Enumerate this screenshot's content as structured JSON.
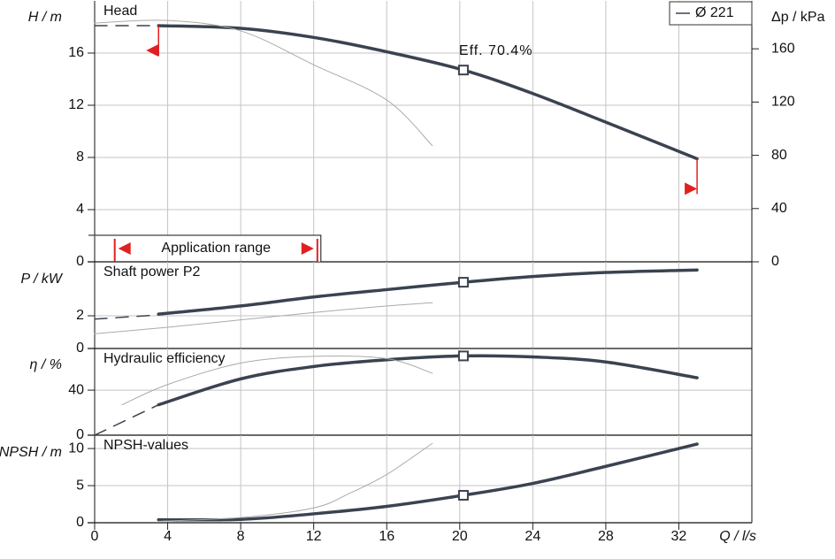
{
  "chart_data": [
    {
      "type": "line",
      "title": "Head",
      "ylabel": "H / m",
      "y2label": "Δp / kPa",
      "xlim": [
        0,
        36
      ],
      "xticks": [
        0,
        4,
        8,
        12,
        16,
        20,
        24,
        28,
        32
      ],
      "ylim": [
        0,
        20
      ],
      "yticks": [
        0,
        4,
        8,
        12,
        16
      ],
      "y2lim": [
        0,
        196
      ],
      "y2ticks": [
        0,
        40,
        80,
        120,
        160
      ],
      "grid": true,
      "legend": "upper right",
      "series": [
        {
          "name": "Ø 221",
          "color": "#3a4350",
          "line_width": 3.5,
          "x": [
            3.5,
            8,
            12,
            16,
            20.2,
            24,
            28,
            33
          ],
          "values": [
            18.1,
            17.9,
            17.2,
            16.1,
            14.7,
            12.9,
            10.7,
            7.9
          ]
        },
        {
          "color": "#3a4350",
          "line_width": 1.5,
          "dashed": true,
          "x": [
            0,
            3.5
          ],
          "values": [
            18.1,
            18.1
          ]
        },
        {
          "color": "#aaaaaa",
          "line_width": 1,
          "x": [
            0,
            4,
            8,
            12,
            16,
            18.5
          ],
          "values": [
            18.3,
            18.5,
            17.7,
            15.1,
            12.4,
            8.9
          ]
        }
      ],
      "duty_point": {
        "x": 20.2,
        "y": 14.7
      },
      "annotation": {
        "text": "Eff. 70.4%",
        "x": 20.2,
        "y": 15.6
      },
      "application_range": {
        "label": "Application range",
        "x": [
          1.1,
          12.2
        ]
      },
      "limits": [
        {
          "x": 3.5,
          "from": 18.1,
          "to": 16.2,
          "dir": "left"
        },
        {
          "x": 33,
          "from": 7.9,
          "to": 5.6,
          "dir": "right"
        }
      ]
    },
    {
      "type": "line",
      "title": "Shaft power P2",
      "ylabel": "P  / kW",
      "xlim": [
        0,
        36
      ],
      "xticks": [
        0,
        4,
        8,
        12,
        16,
        20,
        24,
        28,
        32
      ],
      "ylim": [
        0,
        5.3
      ],
      "yticks": [
        0,
        2
      ],
      "grid": true,
      "series": [
        {
          "color": "#3a4350",
          "line_width": 3.5,
          "x": [
            3.5,
            8,
            12,
            16,
            20.2,
            24,
            28,
            33
          ],
          "values": [
            2.1,
            2.6,
            3.15,
            3.6,
            4.05,
            4.4,
            4.65,
            4.8
          ]
        },
        {
          "color": "#3a4350",
          "line_width": 1.5,
          "dashed": true,
          "x": [
            0,
            3.5
          ],
          "values": [
            1.8,
            2.05
          ]
        },
        {
          "color": "#aaaaaa",
          "line_width": 1,
          "x": [
            0,
            4,
            8,
            12,
            16,
            18.5
          ],
          "values": [
            0.9,
            1.3,
            1.75,
            2.2,
            2.6,
            2.8
          ]
        }
      ],
      "duty_point": {
        "x": 20.2,
        "y": 4.05
      }
    },
    {
      "type": "line",
      "title": "Hydraulic efficiency",
      "ylabel": "η / %",
      "xlim": [
        0,
        36
      ],
      "xticks": [
        0,
        4,
        8,
        12,
        16,
        20,
        24,
        28,
        32
      ],
      "ylim": [
        0,
        77
      ],
      "yticks": [
        0,
        40
      ],
      "grid": true,
      "series": [
        {
          "color": "#3a4350",
          "line_width": 3.5,
          "x": [
            3.5,
            8,
            12,
            16,
            20.2,
            24,
            28,
            33
          ],
          "values": [
            27,
            50,
            61,
            67,
            70.4,
            69.5,
            65,
            51
          ]
        },
        {
          "color": "#3a4350",
          "line_width": 1.5,
          "dashed": true,
          "x": [
            0,
            3.5
          ],
          "values": [
            0,
            27
          ]
        },
        {
          "color": "#aaaaaa",
          "line_width": 1,
          "x": [
            1.5,
            4,
            8,
            12,
            16,
            18.5
          ],
          "values": [
            27,
            45,
            64,
            70,
            68,
            55
          ]
        }
      ],
      "duty_point": {
        "x": 20.2,
        "y": 70.4
      }
    },
    {
      "type": "line",
      "title": "NPSH-values",
      "ylabel": "NPSH / m",
      "xlabel": "Q / l/s",
      "xlim": [
        0,
        36
      ],
      "xticks": [
        0,
        4,
        8,
        12,
        16,
        20,
        24,
        28,
        32
      ],
      "ylim": [
        0,
        11.8
      ],
      "yticks": [
        0,
        5,
        10
      ],
      "grid": true,
      "series": [
        {
          "color": "#3a4350",
          "line_width": 3.5,
          "x": [
            3.5,
            8,
            12,
            16,
            20.2,
            24,
            28,
            33
          ],
          "values": [
            0.4,
            0.45,
            1.2,
            2.2,
            3.7,
            5.3,
            7.6,
            10.6
          ]
        },
        {
          "color": "#aaaaaa",
          "line_width": 1,
          "x": [
            3.5,
            8,
            12,
            14,
            16,
            18.5
          ],
          "values": [
            0.2,
            0.7,
            2,
            4,
            6.5,
            10.7
          ]
        }
      ],
      "duty_point": {
        "x": 20.2,
        "y": 3.7
      }
    }
  ]
}
